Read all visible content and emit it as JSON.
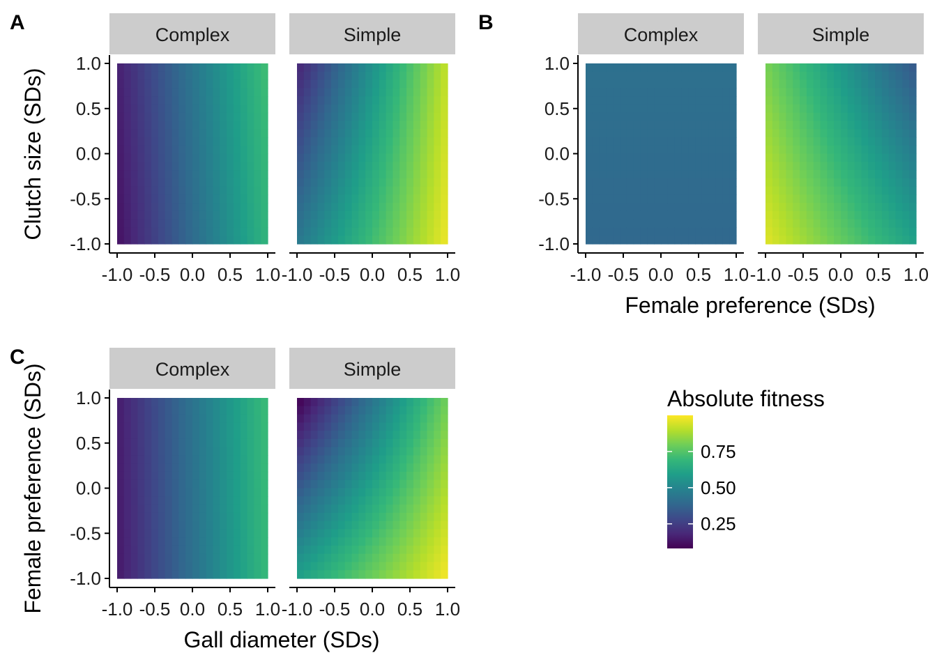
{
  "chart_data": [
    {
      "type": "heatmap",
      "panel_label": "A",
      "xlabel": "Gall diameter (SDs)",
      "ylabel": "Clutch size (SDs)",
      "facets": [
        "Complex",
        "Simple"
      ],
      "x_ticks": [
        "-1.0",
        "-0.5",
        "0.0",
        "0.5",
        "1.0"
      ],
      "y_ticks": [
        "1.0",
        "0.5",
        "0.0",
        "-0.5",
        "-1.0"
      ],
      "xlim": [
        -1,
        1
      ],
      "ylim": [
        -1,
        1
      ],
      "corner_values": {
        "Complex": {
          "x-1_y1": 0.16,
          "x1_y1": 0.72,
          "x-1_y-1": 0.12,
          "x1_y-1": 0.68
        },
        "Simple": {
          "x-1_y1": 0.17,
          "x1_y1": 0.92,
          "x-1_y-1": 0.45,
          "x1_y-1": 0.98
        }
      }
    },
    {
      "type": "heatmap",
      "panel_label": "B",
      "xlabel": "Female preference (SDs)",
      "ylabel": "",
      "facets": [
        "Complex",
        "Simple"
      ],
      "x_ticks": [
        "-1.0",
        "-0.5",
        "0.0",
        "0.5",
        "1.0"
      ],
      "y_ticks": [
        "1.0",
        "0.5",
        "0.0",
        "-0.5",
        "-1.0"
      ],
      "xlim": [
        -1,
        1
      ],
      "ylim": [
        -1,
        1
      ],
      "corner_values": {
        "Complex": {
          "x-1_y1": 0.42,
          "x1_y1": 0.42,
          "x-1_y-1": 0.39,
          "x1_y-1": 0.39
        },
        "Simple": {
          "x-1_y1": 0.81,
          "x1_y1": 0.33,
          "x-1_y-1": 0.96,
          "x1_y-1": 0.6
        }
      }
    },
    {
      "type": "heatmap",
      "panel_label": "C",
      "xlabel": "Gall diameter (SDs)",
      "ylabel": "Female preference (SDs)",
      "facets": [
        "Complex",
        "Simple"
      ],
      "x_ticks": [
        "-1.0",
        "-0.5",
        "0.0",
        "0.5",
        "1.0"
      ],
      "y_ticks": [
        "1.0",
        "0.5",
        "0.0",
        "-0.5",
        "-1.0"
      ],
      "xlim": [
        -1,
        1
      ],
      "ylim": [
        -1,
        1
      ],
      "corner_values": {
        "Complex": {
          "x-1_y1": 0.15,
          "x1_y1": 0.71,
          "x-1_y-1": 0.14,
          "x1_y-1": 0.7
        },
        "Simple": {
          "x-1_y1": 0.07,
          "x1_y1": 0.8,
          "x-1_y-1": 0.6,
          "x1_y-1": 0.99
        }
      }
    }
  ],
  "legend": {
    "title": "Absolute fitness",
    "breaks": [
      {
        "label": "0.75",
        "value": 0.75
      },
      {
        "label": "0.50",
        "value": 0.5
      },
      {
        "label": "0.25",
        "value": 0.25
      }
    ],
    "range": [
      0.08,
      1.0
    ],
    "colormap": "viridis"
  },
  "colors": {
    "strip_fill": "#cccccc",
    "axis_line": "#000000",
    "viridis_stops": [
      "#440154",
      "#482878",
      "#3e4989",
      "#31688e",
      "#26828e",
      "#1f9e89",
      "#35b779",
      "#6ece58",
      "#b5de2b",
      "#fde725"
    ]
  }
}
